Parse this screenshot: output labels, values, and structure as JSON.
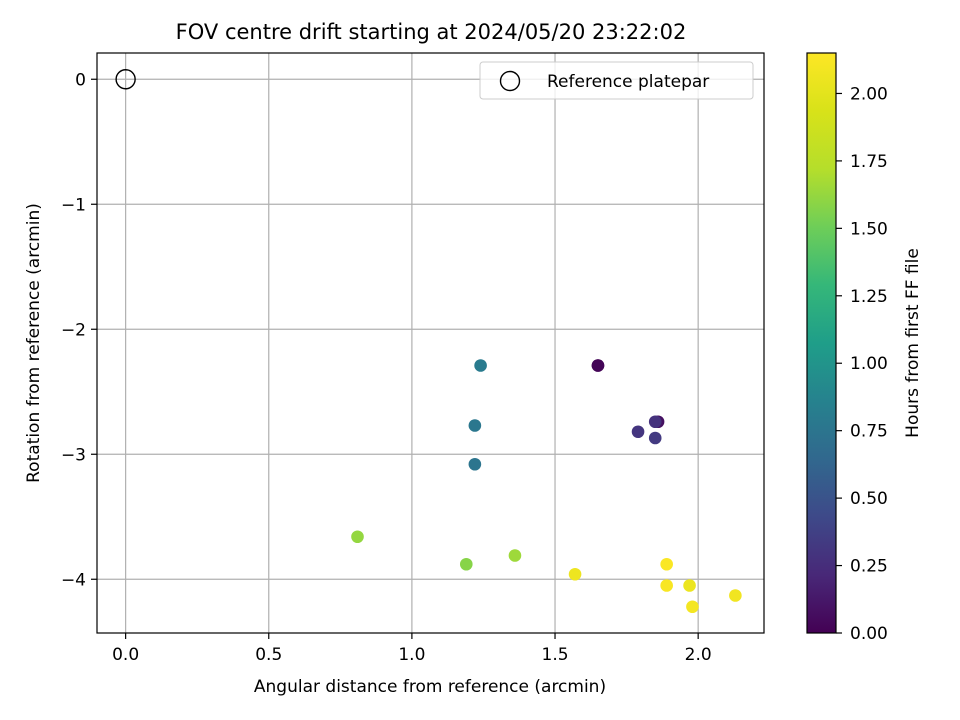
{
  "chart_data": {
    "type": "scatter",
    "title": "FOV centre drift starting at 2024/05/20 23:22:02",
    "xlabel": "Angular distance from reference (arcmin)",
    "ylabel": "Rotation from reference (arcmin)",
    "xlim": [
      -0.1,
      2.23
    ],
    "ylim": [
      -4.43,
      0.21
    ],
    "xticks": [
      0.0,
      0.5,
      1.0,
      1.5,
      2.0
    ],
    "xtick_labels": [
      "0.0",
      "0.5",
      "1.0",
      "1.5",
      "2.0"
    ],
    "yticks": [
      0,
      -1,
      -2,
      -3,
      -4
    ],
    "ytick_labels": [
      "0",
      "−1",
      "−2",
      "−3",
      "−4"
    ],
    "grid": true,
    "legend": {
      "placement": "top-right",
      "entries": [
        {
          "label": "Reference platepar",
          "marker": "open-circle"
        }
      ]
    },
    "reference_point": {
      "x": 0.0,
      "y": 0.0
    },
    "colorbar": {
      "label": "Hours from first FF file",
      "colormap": "viridis",
      "range": [
        0.0,
        2.15
      ],
      "ticks": [
        0.0,
        0.25,
        0.5,
        0.75,
        1.0,
        1.25,
        1.5,
        1.75,
        2.0
      ],
      "tick_labels": [
        "0.00",
        "0.25",
        "0.50",
        "0.75",
        "1.00",
        "1.25",
        "1.50",
        "1.75",
        "2.00"
      ]
    },
    "points": [
      {
        "x": 1.65,
        "y": -2.29,
        "c": 0.0
      },
      {
        "x": 1.65,
        "y": -2.29,
        "c": 0.02
      },
      {
        "x": 1.86,
        "y": -2.74,
        "c": 0.08
      },
      {
        "x": 1.85,
        "y": -2.74,
        "c": 0.28
      },
      {
        "x": 1.79,
        "y": -2.82,
        "c": 0.3
      },
      {
        "x": 1.85,
        "y": -2.87,
        "c": 0.33
      },
      {
        "x": 1.24,
        "y": -2.29,
        "c": 0.8
      },
      {
        "x": 1.22,
        "y": -2.77,
        "c": 0.77
      },
      {
        "x": 1.22,
        "y": -3.08,
        "c": 0.75
      },
      {
        "x": 0.81,
        "y": -3.66,
        "c": 1.62
      },
      {
        "x": 1.19,
        "y": -3.88,
        "c": 1.58
      },
      {
        "x": 1.36,
        "y": -3.81,
        "c": 1.65
      },
      {
        "x": 1.57,
        "y": -3.96,
        "c": 2.06
      },
      {
        "x": 1.89,
        "y": -3.88,
        "c": 2.13
      },
      {
        "x": 1.89,
        "y": -4.05,
        "c": 2.12
      },
      {
        "x": 1.97,
        "y": -4.05,
        "c": 2.05
      },
      {
        "x": 1.98,
        "y": -4.22,
        "c": 2.1
      },
      {
        "x": 2.13,
        "y": -4.13,
        "c": 2.08
      }
    ]
  }
}
